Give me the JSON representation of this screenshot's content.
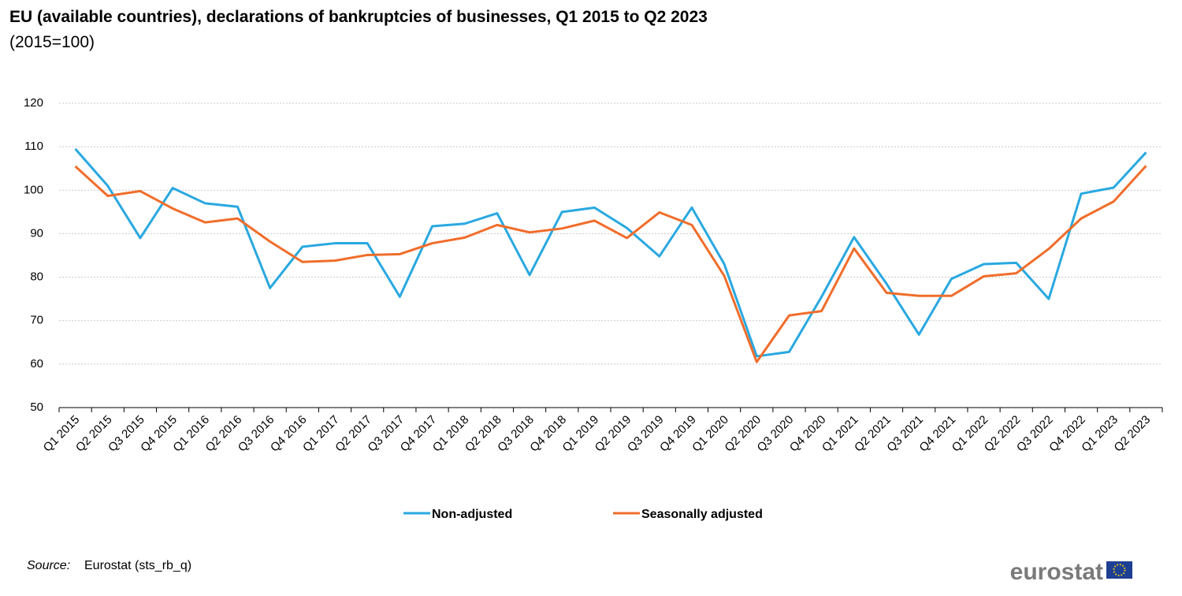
{
  "chart_data": {
    "type": "line",
    "title": "EU (available countries), declarations of bankruptcies of businesses, Q1 2015 to Q2 2023",
    "subtitle": "(2015=100)",
    "categories": [
      "Q1 2015",
      "Q2 2015",
      "Q3 2015",
      "Q4 2015",
      "Q1 2016",
      "Q2 2016",
      "Q3 2016",
      "Q4 2016",
      "Q1 2017",
      "Q2 2017",
      "Q3 2017",
      "Q4 2017",
      "Q1 2018",
      "Q2 2018",
      "Q3 2018",
      "Q4 2018",
      "Q1 2019",
      "Q2 2019",
      "Q3 2019",
      "Q4 2019",
      "Q1 2020",
      "Q2 2020",
      "Q3 2020",
      "Q4 2020",
      "Q1 2021",
      "Q2 2021",
      "Q3 2021",
      "Q4 2021",
      "Q1 2022",
      "Q2 2022",
      "Q3 2022",
      "Q4 2022",
      "Q1 2023",
      "Q2 2023"
    ],
    "series": [
      {
        "name": "Non-adjusted",
        "color": "#29a8e0",
        "values": [
          109.5,
          101,
          89,
          100.5,
          97,
          96.2,
          77.5,
          87,
          87.8,
          87.8,
          75.5,
          91.7,
          92.3,
          94.7,
          80.5,
          95,
          96,
          91.3,
          84.8,
          96,
          83,
          61.8,
          62.8,
          75.5,
          89.2,
          78.5,
          66.8,
          79.6,
          83,
          83.3,
          75,
          99.2,
          100.6,
          108.7
        ]
      },
      {
        "name": "Seasonally adjusted",
        "color": "#f06d2b",
        "values": [
          105.5,
          98.7,
          99.8,
          95.8,
          92.6,
          93.5,
          88.2,
          83.5,
          83.8,
          85.1,
          85.3,
          87.8,
          89.1,
          92,
          90.3,
          91.2,
          93,
          89,
          94.9,
          92,
          80.3,
          60.5,
          71.2,
          72.2,
          86.6,
          76.4,
          75.7,
          75.7,
          80.2,
          80.9,
          86.5,
          93.5,
          97.4,
          105.6
        ]
      }
    ],
    "ylim": [
      50,
      120
    ],
    "yticks": [
      50,
      60,
      70,
      80,
      90,
      100,
      110,
      120
    ],
    "grid": true,
    "legend": "bottom",
    "source_label": "Source:",
    "source": "Eurostat (sts_rb_q)",
    "logo": "eurostat"
  }
}
